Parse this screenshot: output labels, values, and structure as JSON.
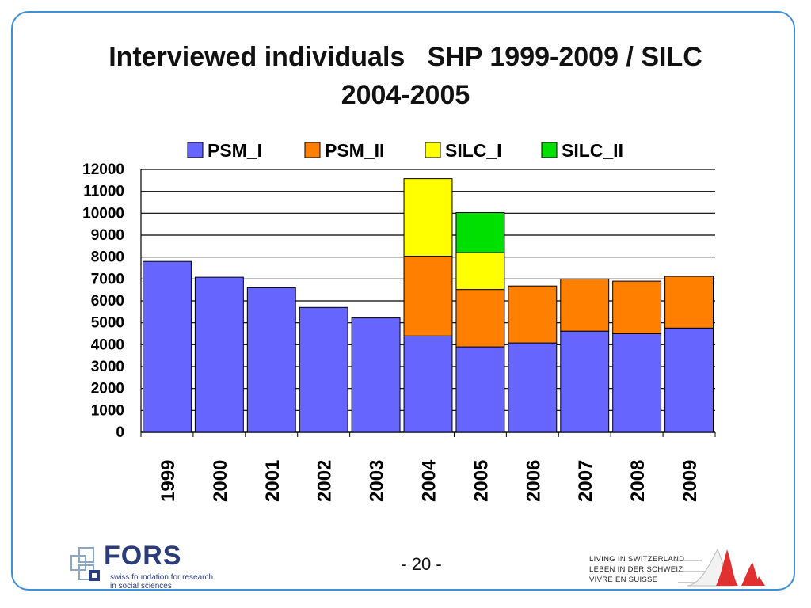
{
  "slide": {
    "title_line1": "Interviewed individuals   SHP 1999-2009 / SILC",
    "title_line2": "2004-2005",
    "page_number": "- 20 -"
  },
  "footer": {
    "fors_name": "FORS",
    "fors_sub1": "swiss foundation for research",
    "fors_sub2": "in social sciences",
    "lis_line1": "LIVING IN SWITZERLAND",
    "lis_line2": "LEBEN IN DER SCHWEIZ",
    "lis_line3": "VIVRE EN SUISSE"
  },
  "chart_data": {
    "type": "bar",
    "stacked": true,
    "title": "",
    "xlabel": "",
    "ylabel": "",
    "categories": [
      "1999",
      "2000",
      "2001",
      "2002",
      "2003",
      "2004",
      "2005",
      "2006",
      "2007",
      "2008",
      "2009"
    ],
    "series": [
      {
        "name": "PSM_I",
        "color": "#6666ff",
        "values": [
          7800,
          7080,
          6600,
          5700,
          5220,
          4400,
          3900,
          4080,
          4620,
          4500,
          4760
        ]
      },
      {
        "name": "PSM_II",
        "color": "#ff8000",
        "values": [
          0,
          0,
          0,
          0,
          0,
          3640,
          2620,
          2600,
          2380,
          2400,
          2360
        ]
      },
      {
        "name": "SILC_I",
        "color": "#ffff00",
        "values": [
          0,
          0,
          0,
          0,
          0,
          3540,
          1680,
          0,
          0,
          0,
          0
        ]
      },
      {
        "name": "SILC_II",
        "color": "#00e000",
        "values": [
          0,
          0,
          0,
          0,
          0,
          0,
          1830,
          0,
          0,
          0,
          0
        ]
      }
    ],
    "ylim": [
      0,
      12000
    ],
    "yticks": [
      0,
      1000,
      2000,
      3000,
      4000,
      5000,
      6000,
      7000,
      8000,
      9000,
      10000,
      11000,
      12000
    ],
    "grid": true,
    "legend": "top"
  }
}
